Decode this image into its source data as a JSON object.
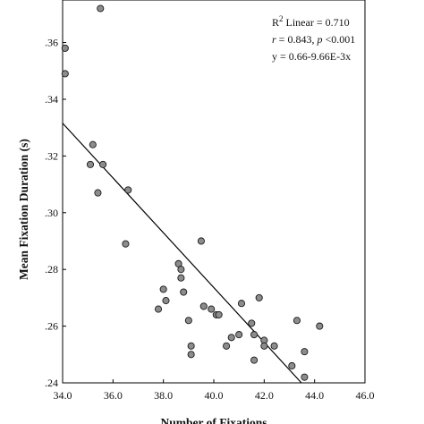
{
  "chart_data": {
    "type": "scatter",
    "title": "",
    "xlabel": "Number of Fixations",
    "ylabel": "Mean Fixation Duration (s)",
    "xlim": [
      34.0,
      46.0
    ],
    "ylim": [
      0.24,
      0.375
    ],
    "x_ticks": [
      "34.0",
      "36.0",
      "38.0",
      "40.0",
      "42.0",
      "44.0",
      "46.0"
    ],
    "y_ticks": [
      ".24",
      ".26",
      ".28",
      ".30",
      ".32",
      ".34",
      ".36"
    ],
    "stats": {
      "r2": "R",
      "r2_sup": "2",
      "r2_rest": " Linear = 0.710",
      "r_label": "r",
      "r_value": " = 0.843, ",
      "p_label": "p",
      "p_value": " <0.001",
      "equation": "y = 0.66-9.66E-3x"
    },
    "fit_line": {
      "intercept": 0.66,
      "slope": -0.00966
    },
    "points": [
      {
        "x": 34.1,
        "y": 0.358
      },
      {
        "x": 34.1,
        "y": 0.349
      },
      {
        "x": 35.5,
        "y": 0.372
      },
      {
        "x": 35.2,
        "y": 0.324
      },
      {
        "x": 35.1,
        "y": 0.317
      },
      {
        "x": 35.6,
        "y": 0.317
      },
      {
        "x": 35.4,
        "y": 0.307
      },
      {
        "x": 36.6,
        "y": 0.308
      },
      {
        "x": 36.5,
        "y": 0.289
      },
      {
        "x": 39.5,
        "y": 0.29
      },
      {
        "x": 38.6,
        "y": 0.282
      },
      {
        "x": 38.7,
        "y": 0.28
      },
      {
        "x": 38.7,
        "y": 0.277
      },
      {
        "x": 38.0,
        "y": 0.273
      },
      {
        "x": 38.8,
        "y": 0.272
      },
      {
        "x": 38.1,
        "y": 0.269
      },
      {
        "x": 37.8,
        "y": 0.266
      },
      {
        "x": 39.6,
        "y": 0.267
      },
      {
        "x": 39.9,
        "y": 0.266
      },
      {
        "x": 40.1,
        "y": 0.264
      },
      {
        "x": 40.2,
        "y": 0.264
      },
      {
        "x": 41.1,
        "y": 0.268
      },
      {
        "x": 41.8,
        "y": 0.27
      },
      {
        "x": 39.0,
        "y": 0.262
      },
      {
        "x": 40.7,
        "y": 0.256
      },
      {
        "x": 41.0,
        "y": 0.257
      },
      {
        "x": 41.5,
        "y": 0.261
      },
      {
        "x": 41.6,
        "y": 0.257
      },
      {
        "x": 40.5,
        "y": 0.253
      },
      {
        "x": 39.1,
        "y": 0.253
      },
      {
        "x": 39.1,
        "y": 0.25
      },
      {
        "x": 42.0,
        "y": 0.255
      },
      {
        "x": 42.0,
        "y": 0.253
      },
      {
        "x": 42.4,
        "y": 0.253
      },
      {
        "x": 41.6,
        "y": 0.248
      },
      {
        "x": 43.3,
        "y": 0.262
      },
      {
        "x": 44.2,
        "y": 0.26
      },
      {
        "x": 43.6,
        "y": 0.251
      },
      {
        "x": 43.1,
        "y": 0.246
      },
      {
        "x": 43.6,
        "y": 0.242
      }
    ]
  }
}
